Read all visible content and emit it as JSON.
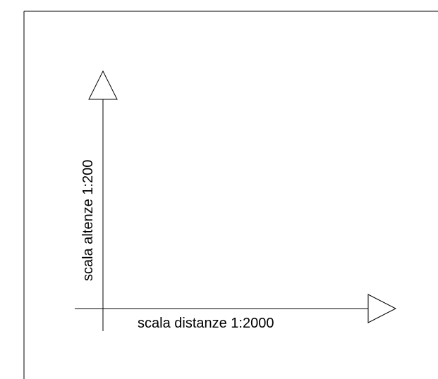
{
  "diagram": {
    "x_axis_label": "scala distanze 1:2000",
    "y_axis_label": "scala altenze 1:200"
  },
  "colors": {
    "stroke": "#000000",
    "background": "#ffffff"
  }
}
